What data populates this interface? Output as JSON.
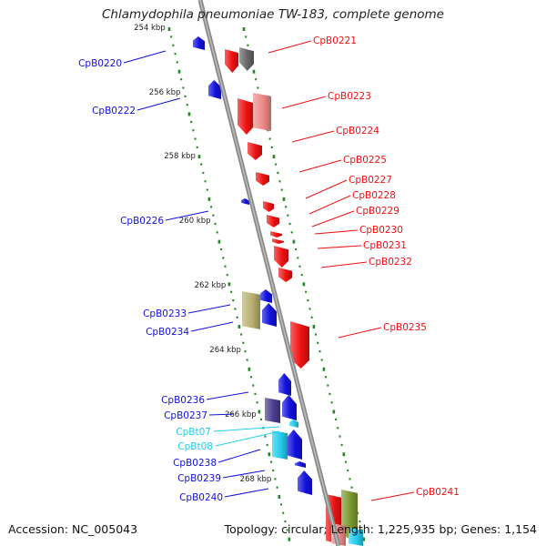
{
  "title": "Chlamydophila pneumoniae TW-183, complete genome",
  "accession": "Accession: NC_005043",
  "footer": "Topology: circular; Length: 1,225,935 bp; Genes: 1,154",
  "colors": {
    "forward": "#ee1111",
    "reverse": "#1111dd",
    "trna": "#22ccee",
    "gray": "#666666",
    "pink": "#ee8888",
    "khaki": "#b8b070",
    "darkblue": "#4a3d8f",
    "olive": "#7a9a30",
    "tick": "#228822",
    "backbone": "#8a8a8a"
  },
  "ruler_labels": [
    "254 kbp",
    "256 kbp",
    "258 kbp",
    "260 kbp",
    "262 kbp",
    "264 kbp",
    "266 kbp",
    "268 kbp"
  ],
  "reverse_genes": [
    "CpB0220",
    "CpB0222",
    "CpB0226",
    "CpB0233",
    "CpB0234",
    "CpB0236",
    "CpB0237",
    "CpB0238",
    "CpB0239",
    "CpB0240"
  ],
  "trna_genes": [
    "CpBt07",
    "CpBt08"
  ],
  "forward_genes": [
    "CpB0221",
    "CpB0223",
    "CpB0224",
    "CpB0225",
    "CpB0227",
    "CpB0228",
    "CpB0229",
    "CpB0230",
    "CpB0231",
    "CpB0232",
    "CpB0235",
    "CpB0241"
  ]
}
